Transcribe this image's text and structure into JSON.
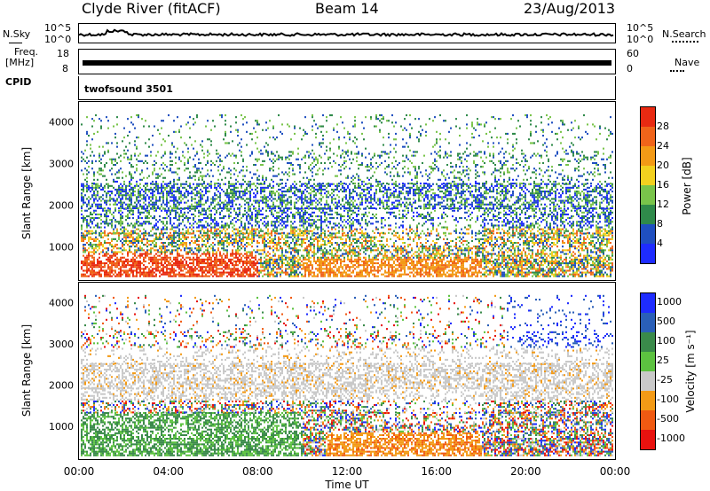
{
  "header": {
    "station": "Clyde River (fitACF)",
    "beam": "Beam 14",
    "date": "23/Aug/2013"
  },
  "top_panels": {
    "nsky_label": "N.Sky",
    "nsearch_label": "N.Search",
    "noise_ticks_left": [
      "10^5",
      "10^0"
    ],
    "noise_ticks_right": [
      "10^5",
      "10^0"
    ],
    "freq_label": "Freq.",
    "freq_unit": "[MHz]",
    "freq_ticks": [
      "18",
      "8"
    ],
    "nave_label": "Nave",
    "nave_ticks": [
      "60",
      "0"
    ],
    "cpid_label": "CPID",
    "cpid_value": "twofsound 3501"
  },
  "chart_data": [
    {
      "type": "heatmap",
      "name": "power",
      "ylabel": "Slant Range [km]",
      "ylim": [
        180,
        4500
      ],
      "yticks": [
        1000,
        2000,
        3000,
        4000
      ],
      "xlabel": "",
      "colorbar": {
        "label": "Power [dB]",
        "ticks": [
          "4",
          "8",
          "12",
          "16",
          "20",
          "24",
          "28"
        ],
        "colors": [
          "#1e2cff",
          "#1f4fc0",
          "#2f8a4a",
          "#79c44a",
          "#f3d11f",
          "#f39a16",
          "#f0641a",
          "#e82a12"
        ]
      }
    },
    {
      "type": "heatmap",
      "name": "velocity",
      "ylabel": "Slant Range [km]",
      "ylim": [
        180,
        4500
      ],
      "yticks": [
        1000,
        2000,
        3000,
        4000
      ],
      "xlabel": "Time UT",
      "xticks": [
        "00:00",
        "04:00",
        "08:00",
        "12:00",
        "16:00",
        "20:00",
        "00:00"
      ],
      "colorbar": {
        "label": "Velocity [m s⁻¹]",
        "ticks": [
          "1000",
          "500",
          "100",
          "25",
          "-25",
          "-100",
          "-500",
          "-1000"
        ],
        "colors": [
          "#1e2cff",
          "#2a5fb8",
          "#3a8a4a",
          "#5cc240",
          "#c9c9c9",
          "#f39a16",
          "#f05a12",
          "#e8120f"
        ]
      }
    }
  ]
}
